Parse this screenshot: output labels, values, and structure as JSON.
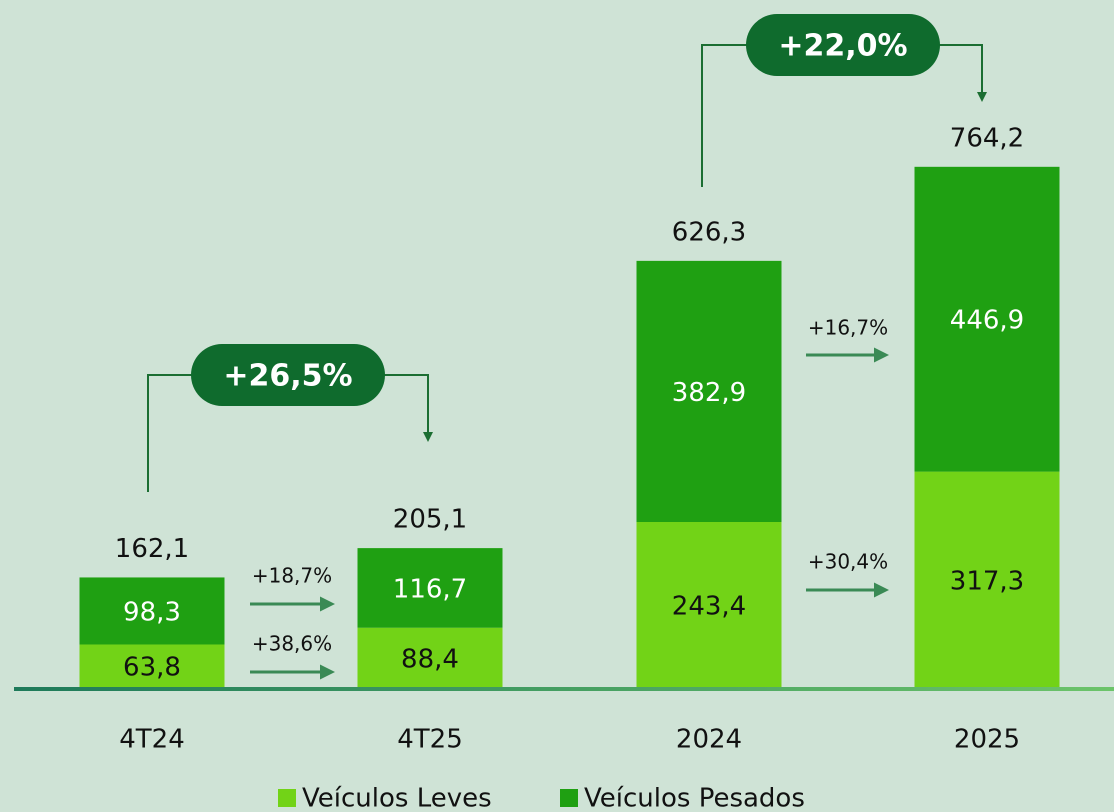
{
  "chart_data": {
    "type": "stacked-bar",
    "categories": [
      "4T24",
      "4T25",
      "2024",
      "2025"
    ],
    "series": [
      {
        "name": "Veículos Leves",
        "color": "#72d317",
        "values": [
          63.8,
          88.4,
          243.4,
          317.3
        ],
        "value_labels": [
          "63,8",
          "88,4",
          "243,4",
          "317,3"
        ]
      },
      {
        "name": "Veículos Pesados",
        "color": "#1fa012",
        "values": [
          98.3,
          116.7,
          382.9,
          446.9
        ],
        "value_labels": [
          "98,3",
          "116,7",
          "382,9",
          "446,9"
        ]
      }
    ],
    "totals": [
      162.1,
      205.1,
      626.3,
      764.2
    ],
    "total_labels": [
      "162,1",
      "205,1",
      "626,3",
      "764,2"
    ],
    "annotations": [
      "+18,7%",
      "+38,6%",
      "+16,7%",
      "+30,4%",
      "+26,5%",
      "+22,0%"
    ],
    "ylim": [
      0,
      1000
    ]
  }
}
